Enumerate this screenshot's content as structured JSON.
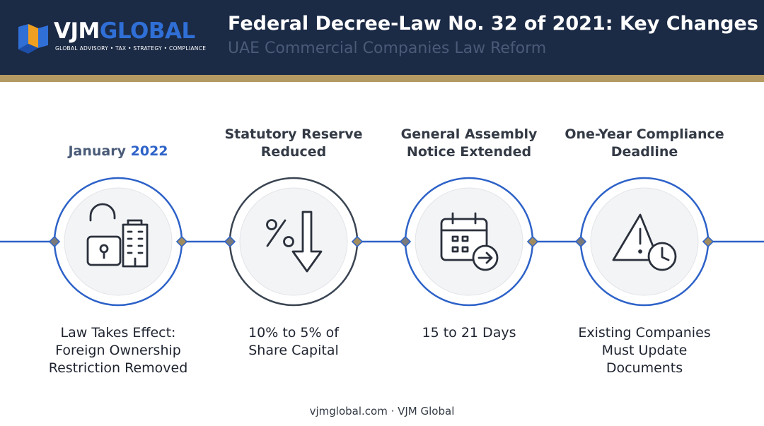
{
  "header": {
    "logo_text_part1": "VJM",
    "logo_text_part2": "GLOBAL",
    "logo_tagline": "GLOBAL ADVISORY • TAX • STRATEGY • COMPLIANCE",
    "title": "Federal Decree-Law No. 32 of 2021: Key Changes",
    "subtitle": "UAE Commercial Companies Law Reform"
  },
  "colors": {
    "navy": "#1b2a45",
    "gold": "#b49a62",
    "blue": "#2d62c8",
    "dark_ring": "#3a4452"
  },
  "steps": [
    {
      "head_month": "January",
      "head_year": "2022",
      "desc_lines": [
        "Law Takes Effect:",
        "Foreign Ownership",
        "Restriction Removed"
      ],
      "icon": "unlock-building-icon",
      "ring": "blue"
    },
    {
      "head_lines": [
        "Statutory Reserve",
        "Reduced"
      ],
      "desc_lines": [
        "10% to 5% of",
        "Share Capital"
      ],
      "icon": "percent-down-arrow-icon",
      "ring": "dark"
    },
    {
      "head_lines": [
        "General Assembly",
        "Notice Extended"
      ],
      "desc_lines": [
        "15 to 21 Days"
      ],
      "icon": "calendar-arrow-icon",
      "ring": "blue"
    },
    {
      "head_lines": [
        "One-Year Compliance",
        "Deadline"
      ],
      "desc_lines": [
        "Existing Companies",
        "Must Update",
        "Documents"
      ],
      "icon": "warning-clock-icon",
      "ring": "blue"
    }
  ],
  "footer": "vjmglobal.com · VJM Global"
}
